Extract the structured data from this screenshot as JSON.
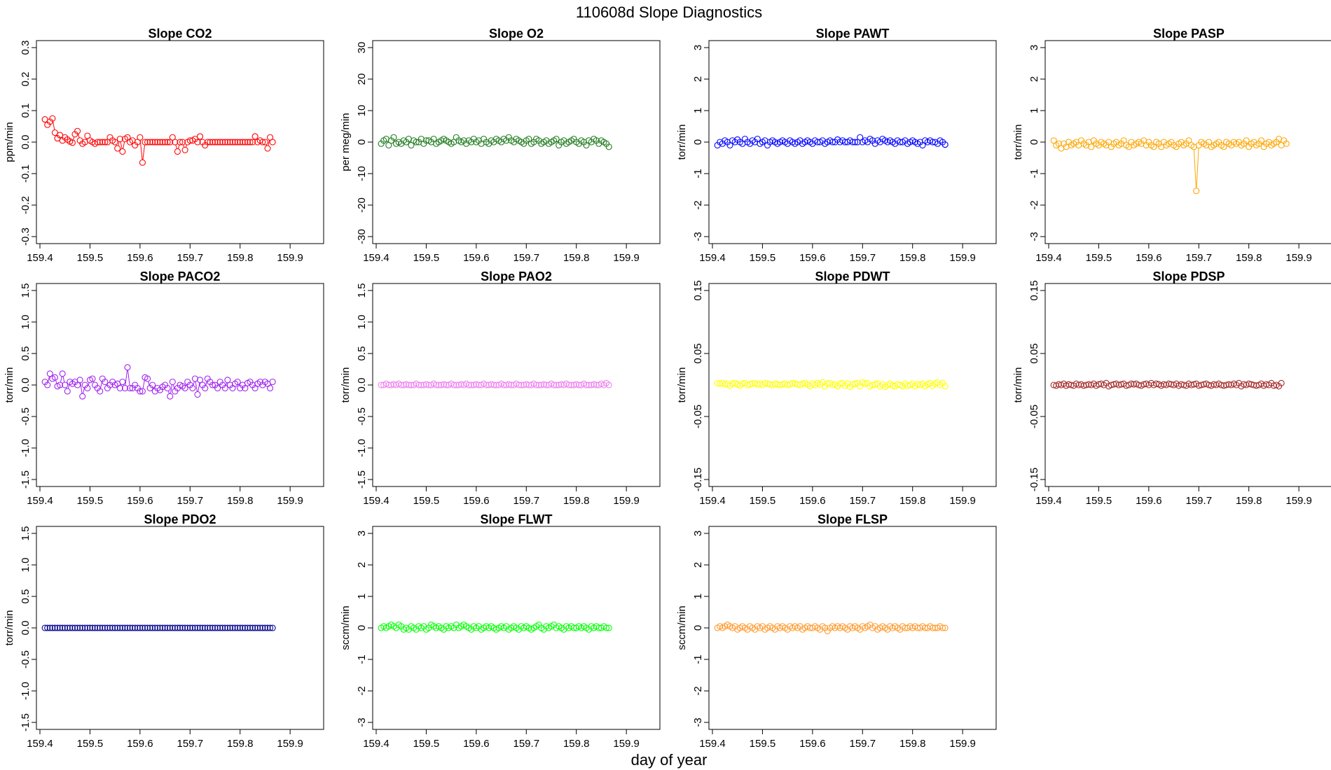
{
  "figure": {
    "title": "110608d   Slope Diagnostics",
    "xlabel": "day of year",
    "x_ticks": [
      "159.4",
      "159.5",
      "159.6",
      "159.7",
      "159.8",
      "159.9"
    ]
  },
  "chart_data": [
    {
      "type": "scatter",
      "title": "Slope CO2",
      "ylabel": "ppm/min",
      "color": "#ff0000",
      "xlim": [
        159.4,
        159.96
      ],
      "ylim": [
        -0.3,
        0.3
      ],
      "y_ticks": [
        "-0.3",
        "-0.2",
        "-0.1",
        "0.0",
        "0.1",
        "0.2",
        "0.3"
      ],
      "x_start": 159.41,
      "x_step": 0.005,
      "values": [
        0.072,
        0.055,
        0.065,
        0.075,
        0.03,
        0.012,
        0.022,
        0.005,
        0.015,
        0.008,
        0.002,
        -0.002,
        0.025,
        0.035,
        0.005,
        -0.005,
        0.0,
        0.02,
        0.005,
        0.0,
        -0.005,
        0.0,
        0.0,
        0.0,
        0.0,
        0.0,
        0.015,
        0.005,
        0.0,
        -0.02,
        0.01,
        -0.03,
        0.01,
        0.015,
        0.0,
        0.005,
        -0.01,
        0.0,
        0.015,
        -0.065,
        0.0,
        0.0,
        0.0,
        0.0,
        0.0,
        0.0,
        0.0,
        0.0,
        0.0,
        0.0,
        0.0,
        0.015,
        0.0,
        -0.03,
        0.0,
        0.0,
        -0.025,
        0.0,
        0.005,
        0.005,
        0.01,
        0.0,
        0.018,
        0.0,
        -0.01,
        0.0,
        0.0,
        0.0,
        0.0,
        0.0,
        0.0,
        0.0,
        0.0,
        0.0,
        0.0,
        0.0,
        0.0,
        0.0,
        0.0,
        0.0,
        0.0,
        0.0,
        0.0,
        0.0,
        0.018,
        0.0,
        0.005,
        0.0,
        0.0,
        -0.02,
        0.015,
        0.0
      ]
    },
    {
      "type": "scatter",
      "title": "Slope O2",
      "ylabel": "per meg/min",
      "color": "#1e7a1e",
      "xlim": [
        159.4,
        159.96
      ],
      "ylim": [
        -30,
        30
      ],
      "y_ticks": [
        "-30",
        "-20",
        "-10",
        "0",
        "10",
        "20",
        "30"
      ],
      "x_start": 159.41,
      "x_step": 0.005,
      "values": [
        -0.5,
        0.5,
        1.0,
        -1.0,
        0.5,
        1.5,
        -0.5,
        0.0,
        -0.5,
        0.5,
        0.0,
        1.0,
        -1.0,
        0.5,
        0.0,
        0.0,
        1.0,
        -0.5,
        0.5,
        0.5,
        0.0,
        1.0,
        -0.5,
        0.0,
        0.5,
        1.0,
        0.5,
        0.0,
        -0.5,
        0.0,
        1.5,
        0.5,
        0.0,
        0.5,
        -0.5,
        0.5,
        0.0,
        1.0,
        0.0,
        0.5,
        -0.5,
        1.0,
        0.0,
        -0.5,
        0.5,
        0.0,
        1.0,
        0.5,
        0.0,
        1.0,
        0.5,
        1.5,
        0.5,
        0.0,
        1.0,
        0.5,
        0.0,
        -0.5,
        0.5,
        1.0,
        -0.5,
        0.0,
        1.0,
        0.5,
        -0.5,
        0.0,
        0.5,
        -0.5,
        0.0,
        0.5,
        1.0,
        -1.0,
        0.0,
        0.5,
        -0.5,
        0.0,
        0.5,
        1.0,
        0.0,
        -0.5,
        0.5,
        0.0,
        -1.0,
        0.5,
        0.0,
        1.0,
        0.5,
        -0.5,
        0.5,
        0.0,
        -0.5,
        -1.5
      ]
    },
    {
      "type": "scatter",
      "title": "Slope PAWT",
      "ylabel": "torr/min",
      "color": "#0000ff",
      "xlim": [
        159.4,
        159.96
      ],
      "ylim": [
        -3,
        3
      ],
      "y_ticks": [
        "-3",
        "-2",
        "-1",
        "0",
        "1",
        "2",
        "3"
      ],
      "x_start": 159.41,
      "x_step": 0.005,
      "values": [
        -0.1,
        0.0,
        -0.05,
        0.05,
        0.0,
        -0.1,
        0.05,
        0.0,
        0.08,
        0.0,
        -0.05,
        0.1,
        0.0,
        -0.05,
        0.05,
        0.0,
        0.1,
        -0.05,
        0.0,
        0.05,
        -0.1,
        0.0,
        0.05,
        0.0,
        -0.05,
        0.0,
        0.05,
        0.0,
        -0.05,
        0.05,
        0.0,
        -0.05,
        0.0,
        0.05,
        -0.05,
        0.0,
        0.05,
        0.0,
        -0.05,
        0.05,
        0.0,
        0.0,
        0.05,
        -0.05,
        0.0,
        0.05,
        0.0,
        0.0,
        0.08,
        0.0,
        0.05,
        0.0,
        0.0,
        0.05,
        0.0,
        0.0,
        0.0,
        0.15,
        0.0,
        0.05,
        0.0,
        0.1,
        0.05,
        -0.05,
        0.05,
        0.0,
        0.1,
        0.05,
        0.0,
        0.05,
        0.0,
        -0.05,
        0.05,
        0.0,
        0.0,
        0.05,
        -0.05,
        0.0,
        0.05,
        0.0,
        -0.05,
        0.0,
        -0.1,
        0.05,
        0.0,
        0.05,
        0.0,
        0.0,
        -0.05,
        0.05,
        0.0,
        -0.08
      ]
    },
    {
      "type": "scatter",
      "title": "Slope PASP",
      "ylabel": "torr/min",
      "color": "#ffa500",
      "xlim": [
        159.4,
        159.96
      ],
      "ylim": [
        -3,
        3
      ],
      "y_ticks": [
        "-3",
        "-2",
        "-1",
        "0",
        "1",
        "2",
        "3"
      ],
      "x_start": 159.41,
      "x_step": 0.005,
      "values": [
        0.05,
        -0.1,
        -0.05,
        -0.2,
        -0.05,
        -0.15,
        0.0,
        -0.1,
        -0.05,
        0.0,
        -0.1,
        0.05,
        -0.05,
        -0.1,
        0.0,
        -0.15,
        0.05,
        -0.05,
        -0.1,
        0.0,
        -0.05,
        -0.1,
        0.0,
        -0.15,
        -0.05,
        0.0,
        -0.1,
        -0.05,
        0.05,
        -0.1,
        -0.15,
        0.0,
        -0.1,
        -0.05,
        0.0,
        -0.05,
        0.05,
        -0.1,
        0.0,
        -0.1,
        -0.15,
        0.0,
        -0.05,
        -0.15,
        0.0,
        -0.1,
        -0.05,
        0.0,
        -0.1,
        -0.15,
        -0.05,
        0.0,
        -0.1,
        -0.05,
        0.05,
        -0.1,
        -0.15,
        -1.55,
        -0.1,
        0.0,
        -0.05,
        -0.1,
        0.0,
        -0.15,
        -0.1,
        -0.05,
        0.0,
        -0.1,
        -0.15,
        0.0,
        -0.05,
        -0.1,
        0.0,
        -0.05,
        0.0,
        -0.1,
        -0.05,
        0.05,
        -0.15,
        -0.05,
        0.0,
        -0.1,
        -0.05,
        0.05,
        -0.15,
        -0.05,
        0.0,
        -0.1,
        -0.05,
        0.0,
        0.1,
        -0.1,
        0.05,
        -0.05
      ]
    },
    {
      "type": "scatter",
      "title": "Slope PACO2",
      "ylabel": "torr/min",
      "color": "#a020f0",
      "xlim": [
        159.4,
        159.96
      ],
      "ylim": [
        -1.5,
        1.5
      ],
      "y_ticks": [
        "-1.5",
        "-1.0",
        "-0.5",
        "0.0",
        "0.5",
        "1.0",
        "1.5"
      ],
      "x_start": 159.41,
      "x_step": 0.005,
      "values": [
        0.05,
        0.0,
        0.18,
        0.1,
        0.12,
        -0.02,
        0.0,
        0.18,
        0.0,
        -0.1,
        0.05,
        0.02,
        0.05,
        0.0,
        0.08,
        -0.18,
        0.0,
        -0.05,
        0.08,
        0.1,
        0.0,
        -0.05,
        -0.1,
        0.1,
        0.05,
        -0.05,
        0.0,
        0.05,
        0.0,
        0.02,
        -0.05,
        0.05,
        -0.05,
        0.28,
        -0.05,
        -0.05,
        0.0,
        -0.05,
        -0.1,
        -0.1,
        0.12,
        0.1,
        -0.05,
        0.0,
        -0.1,
        -0.05,
        -0.08,
        -0.03,
        0.0,
        -0.05,
        -0.18,
        0.05,
        -0.1,
        -0.05,
        0.0,
        -0.02,
        -0.05,
        0.05,
        0.0,
        -0.05,
        0.1,
        -0.15,
        0.08,
        0.0,
        -0.05,
        0.1,
        0.05,
        0.0,
        0.0,
        -0.05,
        0.05,
        0.0,
        -0.05,
        0.08,
        0.0,
        -0.05,
        0.02,
        0.05,
        -0.05,
        0.0,
        -0.05,
        0.03,
        0.05,
        0.0,
        -0.05,
        0.02,
        0.05,
        0.0,
        0.05,
        0.02,
        -0.05,
        0.05
      ]
    },
    {
      "type": "scatter",
      "title": "Slope PAO2",
      "ylabel": "torr/min",
      "color": "#ee82ee",
      "xlim": [
        159.4,
        159.96
      ],
      "ylim": [
        -1.5,
        1.5
      ],
      "y_ticks": [
        "-1.5",
        "-1.0",
        "-0.5",
        "0.0",
        "0.5",
        "1.0",
        "1.5"
      ],
      "x_start": 159.41,
      "x_step": 0.005,
      "values": [
        0.0,
        0.0,
        0.02,
        0.0,
        0.0,
        0.01,
        0.0,
        0.02,
        0.0,
        0.0,
        0.01,
        0.0,
        0.0,
        0.0,
        0.02,
        0.0,
        0.0,
        0.0,
        0.01,
        0.0,
        0.0,
        0.02,
        0.0,
        0.0,
        0.0,
        0.01,
        0.0,
        0.0,
        0.02,
        0.0,
        0.0,
        0.0,
        0.01,
        0.0,
        0.02,
        0.0,
        0.0,
        0.0,
        0.01,
        0.0,
        0.0,
        0.02,
        0.0,
        0.0,
        0.01,
        0.0,
        0.0,
        0.0,
        0.02,
        0.0,
        0.0,
        0.01,
        0.0,
        0.0,
        0.02,
        0.0,
        0.0,
        0.0,
        0.01,
        0.0,
        0.0,
        0.02,
        0.0,
        0.0,
        0.0,
        0.01,
        0.0,
        0.0,
        0.02,
        0.0,
        0.0,
        0.0,
        0.01,
        0.0,
        0.02,
        0.0,
        0.0,
        0.0,
        0.01,
        0.0,
        0.0,
        0.02,
        0.0,
        0.0,
        0.0,
        0.01,
        0.0,
        0.0,
        0.02,
        0.0,
        0.03,
        0.0
      ]
    },
    {
      "type": "scatter",
      "title": "Slope PDWT",
      "ylabel": "torr/min",
      "color": "#ffff00",
      "xlim": [
        159.4,
        159.96
      ],
      "ylim": [
        -0.15,
        0.15
      ],
      "y_ticks": [
        "-0.15",
        "-0.05",
        "0.05",
        "0.15"
      ],
      "x_start": 159.41,
      "x_step": 0.005,
      "values": [
        0.003,
        0.002,
        0.003,
        0.001,
        0.002,
        -0.001,
        0.002,
        0.003,
        0.001,
        -0.001,
        0.002,
        0.003,
        0.0,
        0.001,
        0.002,
        0.003,
        0.001,
        0.002,
        0.0,
        0.003,
        0.002,
        0.001,
        0.0,
        0.002,
        0.001,
        0.0,
        0.001,
        0.002,
        0.0,
        0.001,
        0.003,
        0.002,
        0.001,
        0.0,
        0.002,
        0.003,
        0.001,
        -0.002,
        0.002,
        0.0,
        0.003,
        0.001,
        0.004,
        -0.002,
        0.002,
        0.003,
        0.0,
        0.001,
        -0.002,
        0.002,
        0.003,
        -0.001,
        0.002,
        -0.003,
        0.001,
        0.002,
        0.003,
        -0.002,
        0.004,
        0.002,
        0.003,
        -0.002,
        0.0,
        0.001,
        0.002,
        -0.002,
        0.001,
        -0.003,
        0.0,
        0.002,
        -0.001,
        -0.002,
        0.001,
        0.0,
        -0.002,
        0.002,
        -0.001,
        0.0,
        0.002,
        -0.002,
        0.001,
        0.0,
        0.002,
        -0.002,
        0.001,
        0.003,
        -0.001,
        0.002,
        0.004,
        0.0,
        0.003,
        -0.002
      ]
    },
    {
      "type": "scatter",
      "title": "Slope PDSP",
      "ylabel": "torr/min",
      "color": "#a52a2a",
      "xlim": [
        159.4,
        159.96
      ],
      "ylim": [
        -0.15,
        0.15
      ],
      "y_ticks": [
        "-0.15",
        "-0.05",
        "0.05",
        "0.15"
      ],
      "x_start": 159.41,
      "x_step": 0.005,
      "values": [
        0.0,
        -0.001,
        0.001,
        0.0,
        0.002,
        -0.001,
        0.001,
        0.0,
        -0.001,
        0.002,
        0.0,
        0.001,
        -0.001,
        0.0,
        0.001,
        0.0,
        0.002,
        -0.001,
        0.001,
        0.002,
        0.0,
        0.003,
        -0.002,
        0.0,
        0.001,
        0.002,
        0.0,
        0.001,
        0.002,
        -0.001,
        0.0,
        0.002,
        0.001,
        0.002,
        0.0,
        -0.001,
        0.001,
        0.002,
        0.0,
        0.003,
        0.0,
        0.002,
        0.001,
        -0.001,
        0.001,
        0.0,
        0.002,
        0.001,
        0.0,
        0.002,
        -0.001,
        0.001,
        0.0,
        -0.001,
        0.002,
        0.0,
        0.001,
        0.002,
        -0.001,
        0.0,
        0.001,
        0.002,
        0.0,
        -0.001,
        0.001,
        0.0,
        0.002,
        0.0,
        -0.001,
        0.0,
        0.001,
        0.0,
        0.002,
        0.0,
        0.003,
        -0.002,
        0.001,
        0.0,
        0.002,
        0.001,
        0.0,
        -0.001,
        0.0,
        0.002,
        -0.001,
        0.001,
        0.0,
        0.003,
        -0.001,
        0.0,
        -0.002,
        0.003
      ]
    },
    {
      "type": "scatter",
      "title": "Slope PDO2",
      "ylabel": "torr/min",
      "color": "#00008b",
      "xlim": [
        159.4,
        159.96
      ],
      "ylim": [
        -1.5,
        1.5
      ],
      "y_ticks": [
        "-1.5",
        "-1.0",
        "-0.5",
        "0.0",
        "0.5",
        "1.0",
        "1.5"
      ],
      "x_start": 159.41,
      "x_step": 0.005,
      "values": [
        0,
        0,
        0,
        0,
        0,
        0,
        0,
        0,
        0,
        0,
        0,
        0,
        0,
        0,
        0,
        0,
        0,
        0,
        0,
        0,
        0,
        0,
        0,
        0,
        0,
        0,
        0,
        0,
        0,
        0,
        0,
        0,
        0,
        0,
        0,
        0,
        0,
        0,
        0,
        0,
        0,
        0,
        0,
        0,
        0,
        0,
        0,
        0,
        0,
        0,
        0,
        0,
        0,
        0,
        0,
        0,
        0,
        0,
        0,
        0,
        0,
        0,
        0,
        0,
        0,
        0,
        0,
        0,
        0,
        0,
        0,
        0,
        0,
        0,
        0,
        0,
        0,
        0,
        0,
        0,
        0,
        0,
        0,
        0,
        0,
        0,
        0,
        0,
        0,
        0,
        0,
        0
      ]
    },
    {
      "type": "scatter",
      "title": "Slope FLWT",
      "ylabel": "sccm/min",
      "color": "#00ff00",
      "xlim": [
        159.4,
        159.96
      ],
      "ylim": [
        -3,
        3
      ],
      "y_ticks": [
        "-3",
        "-2",
        "-1",
        "0",
        "1",
        "2",
        "3"
      ],
      "x_start": 159.41,
      "x_step": 0.005,
      "values": [
        0.0,
        0.05,
        0.0,
        0.05,
        0.1,
        0.05,
        0.0,
        0.1,
        0.05,
        -0.05,
        0.0,
        -0.05,
        0.05,
        0.0,
        -0.05,
        0.05,
        0.0,
        0.05,
        -0.05,
        0.0,
        0.1,
        0.05,
        0.0,
        0.05,
        0.0,
        -0.05,
        0.05,
        0.0,
        0.05,
        0.0,
        0.1,
        0.0,
        0.05,
        0.1,
        0.05,
        0.0,
        -0.05,
        0.05,
        0.0,
        0.05,
        -0.05,
        0.0,
        0.05,
        0.0,
        0.05,
        0.0,
        -0.05,
        0.0,
        0.05,
        0.0,
        0.05,
        -0.05,
        0.0,
        0.05,
        0.0,
        -0.05,
        0.05,
        0.0,
        0.05,
        0.0,
        -0.05,
        0.0,
        0.05,
        0.1,
        0.0,
        -0.05,
        0.05,
        0.0,
        0.05,
        0.1,
        0.0,
        0.05,
        0.0,
        -0.05,
        0.05,
        0.0,
        0.05,
        0.0,
        0.0,
        0.05,
        0.0,
        0.05,
        0.0,
        -0.05,
        0.05,
        0.0,
        0.05,
        0.0,
        0.0,
        0.05,
        0.0,
        0.0
      ]
    },
    {
      "type": "scatter",
      "title": "Slope FLSP",
      "ylabel": "sccm/min",
      "color": "#ff9a2e",
      "xlim": [
        159.4,
        159.96
      ],
      "ylim": [
        -3,
        3
      ],
      "y_ticks": [
        "-3",
        "-2",
        "-1",
        "0",
        "1",
        "2",
        "3"
      ],
      "x_start": 159.41,
      "x_step": 0.005,
      "values": [
        0.0,
        0.05,
        0.0,
        0.05,
        0.1,
        0.05,
        0.0,
        0.05,
        -0.05,
        0.0,
        0.05,
        0.0,
        -0.05,
        0.05,
        0.0,
        -0.05,
        0.05,
        0.0,
        0.05,
        -0.05,
        0.0,
        0.05,
        0.0,
        -0.05,
        0.05,
        0.0,
        0.05,
        0.0,
        -0.05,
        0.05,
        0.0,
        0.05,
        0.0,
        0.05,
        -0.05,
        0.0,
        0.05,
        0.0,
        0.0,
        0.05,
        0.0,
        -0.05,
        0.05,
        0.0,
        -0.1,
        0.0,
        0.05,
        0.0,
        0.05,
        0.0,
        0.05,
        0.0,
        -0.05,
        0.05,
        0.0,
        0.05,
        0.0,
        -0.05,
        0.05,
        0.0,
        0.05,
        0.1,
        0.0,
        0.05,
        -0.05,
        0.0,
        0.05,
        0.0,
        -0.05,
        0.05,
        0.0,
        0.05,
        0.0,
        -0.05,
        0.05,
        0.0,
        0.0,
        0.05,
        0.0,
        0.05,
        0.0,
        0.0,
        0.05,
        0.0,
        0.0,
        0.05,
        0.0,
        0.0,
        0.0,
        0.05,
        0.0,
        0.0
      ]
    }
  ]
}
